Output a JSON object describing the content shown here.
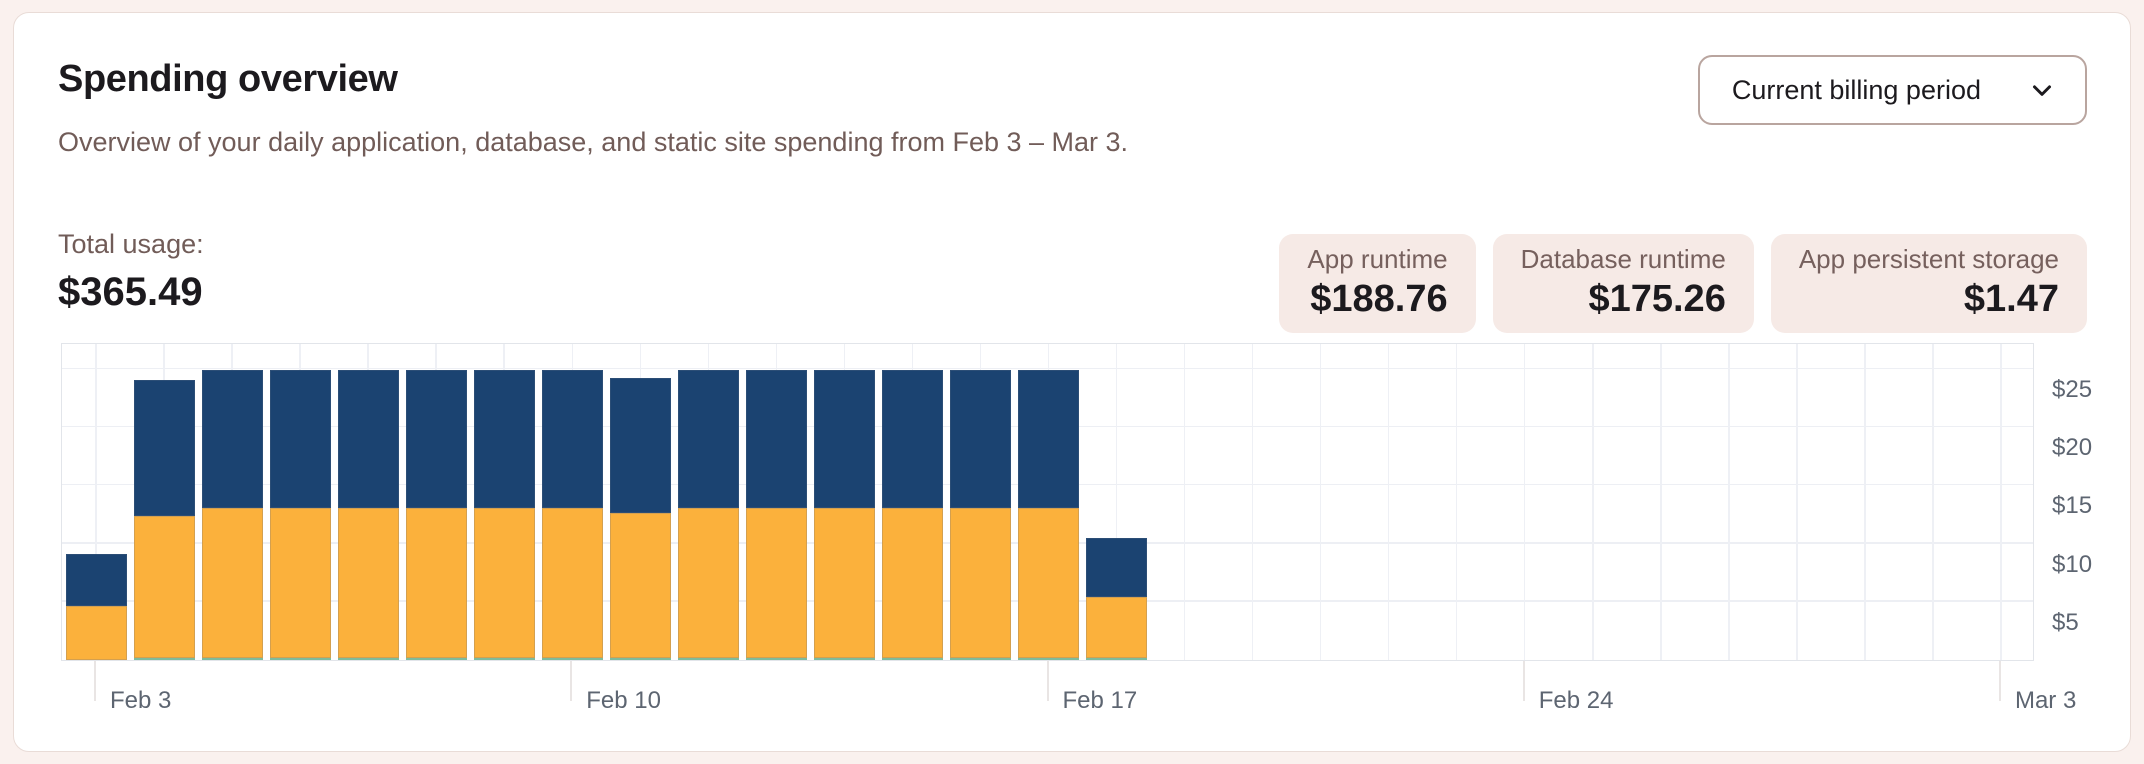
{
  "header": {
    "title": "Spending overview",
    "subtitle": "Overview of your daily application, database, and static site spending from Feb 3 – Mar 3.",
    "period_selector": {
      "value": "Current billing period",
      "icon": "chevron-down-icon"
    }
  },
  "summary": {
    "total_label": "Total usage:",
    "total_value": "$365.49",
    "cards": [
      {
        "label": "App runtime",
        "value": "$188.76"
      },
      {
        "label": "Database runtime",
        "value": "$175.26"
      },
      {
        "label": "App persistent storage",
        "value": "$1.47"
      }
    ]
  },
  "chart_data": {
    "type": "bar",
    "stacked": true,
    "title": "",
    "xlabel": "",
    "ylabel": "",
    "x": [
      "Feb 3",
      "Feb 4",
      "Feb 5",
      "Feb 6",
      "Feb 7",
      "Feb 8",
      "Feb 9",
      "Feb 10",
      "Feb 11",
      "Feb 12",
      "Feb 13",
      "Feb 14",
      "Feb 15",
      "Feb 16",
      "Feb 17",
      "Feb 18",
      "Feb 19",
      "Feb 20",
      "Feb 21",
      "Feb 22",
      "Feb 23",
      "Feb 24",
      "Feb 25",
      "Feb 26",
      "Feb 27",
      "Feb 28",
      "Mar 1",
      "Mar 2",
      "Mar 3"
    ],
    "series": [
      {
        "name": "App persistent storage",
        "color": "#88d4a5",
        "values": [
          0,
          0.098,
          0.098,
          0.098,
          0.098,
          0.098,
          0.098,
          0.098,
          0.098,
          0.098,
          0.098,
          0.098,
          0.098,
          0.098,
          0.098,
          0.098,
          0,
          0,
          0,
          0,
          0,
          0,
          0,
          0,
          0,
          0,
          0,
          0,
          0
        ]
      },
      {
        "name": "App runtime",
        "color": "#fbb13c",
        "values": [
          4.66,
          12.2,
          12.85,
          12.85,
          12.85,
          12.85,
          12.85,
          12.85,
          12.5,
          12.85,
          12.85,
          12.85,
          12.85,
          12.85,
          12.85,
          5.24,
          0,
          0,
          0,
          0,
          0,
          0,
          0,
          0,
          0,
          0,
          0,
          0,
          0
        ]
      },
      {
        "name": "Database runtime",
        "color": "#1b4371",
        "values": [
          4.47,
          11.69,
          11.87,
          11.87,
          11.87,
          11.87,
          11.87,
          11.87,
          11.6,
          11.87,
          11.87,
          11.87,
          11.87,
          11.87,
          11.87,
          5.05,
          0,
          0,
          0,
          0,
          0,
          0,
          0,
          0,
          0,
          0,
          0,
          0,
          0
        ]
      }
    ],
    "x_ticks": [
      {
        "index": 0,
        "label": "Feb 3"
      },
      {
        "index": 7,
        "label": "Feb 10"
      },
      {
        "index": 14,
        "label": "Feb 17"
      },
      {
        "index": 21,
        "label": "Feb 24"
      },
      {
        "index": 28,
        "label": "Mar 3"
      }
    ],
    "y_ticks": [
      {
        "value": 5,
        "label": "$5"
      },
      {
        "value": 10,
        "label": "$10"
      },
      {
        "value": 15,
        "label": "$15"
      },
      {
        "value": 20,
        "label": "$20"
      },
      {
        "value": 25,
        "label": "$25"
      }
    ],
    "ylim": [
      0,
      27.32
    ],
    "grid": true,
    "legend_position": "none",
    "y_axis_side": "right"
  }
}
